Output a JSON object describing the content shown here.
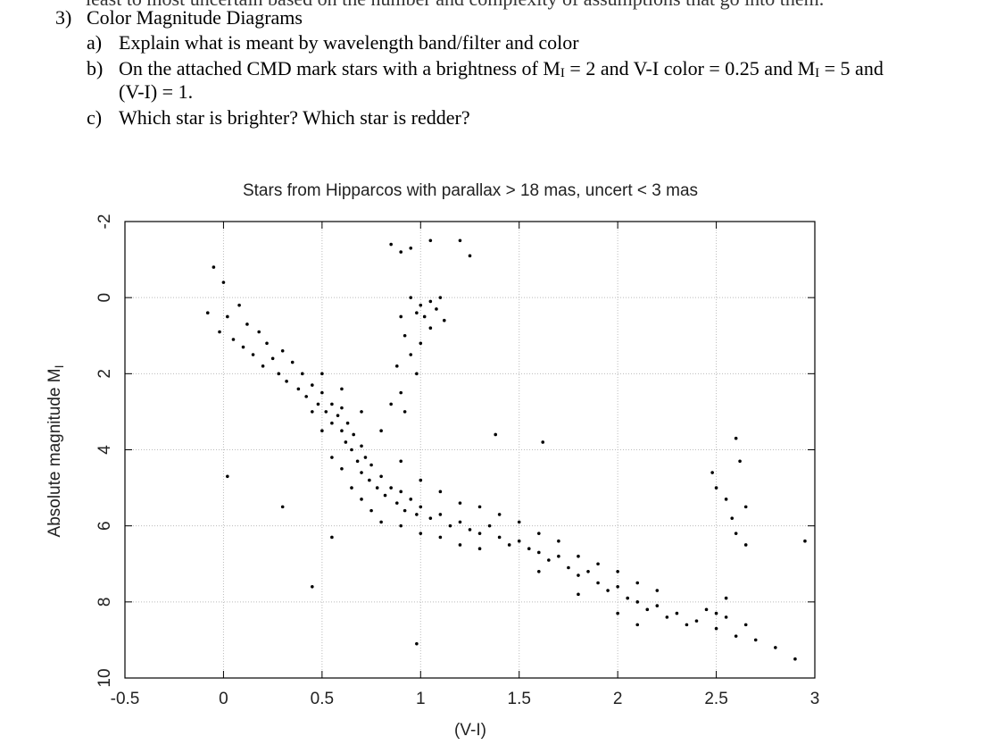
{
  "top_line": "least to most uncertain based on the number and complexity of assumptions that go into them.",
  "question": {
    "number": "3)",
    "title": "Color Magnitude Diagrams",
    "a": {
      "label": "a)",
      "text": "Explain what is meant by wavelength band/filter and color"
    },
    "b": {
      "label": "b)",
      "parts": [
        "On the attached CMD mark stars with a brightness of M",
        "I",
        " = 2 and V-I color = 0.25 and M",
        "I",
        " = 5 and",
        "(V-I) = 1."
      ]
    },
    "c": {
      "label": "c)",
      "text": "Which star is brighter? Which star is redder?"
    }
  },
  "chart_data": {
    "type": "scatter",
    "title": "Stars from Hipparcos with parallax > 18 mas, uncert < 3 mas",
    "x_label": "(V-I)",
    "y_label": [
      "Absolute magnitude M",
      "I"
    ],
    "xlim": [
      -0.5,
      3
    ],
    "xticks": [
      -0.5,
      0,
      0.5,
      1,
      1.5,
      2,
      2.5,
      3
    ],
    "ylim": [
      -2,
      10
    ],
    "yticks": [
      -2,
      0,
      2,
      4,
      6,
      8,
      10
    ],
    "y_inverted": true,
    "grid": true,
    "color": "#000000",
    "x": [
      -0.08,
      -0.05,
      -0.02,
      0,
      0.02,
      0.05,
      0.08,
      0.1,
      0.12,
      0.15,
      0.18,
      0.2,
      0.22,
      0.25,
      0.28,
      0.3,
      0.32,
      0.35,
      0.38,
      0.4,
      0.42,
      0.45,
      0.48,
      0.5,
      0.52,
      0.55,
      0.55,
      0.58,
      0.6,
      0.6,
      0.62,
      0.63,
      0.65,
      0.66,
      0.68,
      0.7,
      0.7,
      0.72,
      0.74,
      0.75,
      0.78,
      0.8,
      0.82,
      0.85,
      0.88,
      0.9,
      0.92,
      0.95,
      0.98,
      1.0,
      1.05,
      1.1,
      1.15,
      1.2,
      1.25,
      1.3,
      1.35,
      1.4,
      1.45,
      1.5,
      1.55,
      1.6,
      1.65,
      1.7,
      1.75,
      1.8,
      1.85,
      1.9,
      1.95,
      2.0,
      2.05,
      2.1,
      2.15,
      2.2,
      2.25,
      2.3,
      2.35,
      2.4,
      2.45,
      2.5,
      2.55,
      2.6,
      2.65,
      2.7,
      2.8,
      2.9,
      0.85,
      0.9,
      0.95,
      1.05,
      1.2,
      1.25,
      0.95,
      1.0,
      1.05,
      1.08,
      1.1,
      0.98,
      1.02,
      1.12,
      0.9,
      0.92,
      0.95,
      0.98,
      0.9,
      0.92,
      1.0,
      1.05,
      0.88,
      0.85,
      0.5,
      0.55,
      0.6,
      0.65,
      0.7,
      0.75,
      0.8,
      0.9,
      1.0,
      1.1,
      1.2,
      1.3,
      0.45,
      0.5,
      0.6,
      0.7,
      0.8,
      0.9,
      1.0,
      1.1,
      1.2,
      1.3,
      1.4,
      1.5,
      1.6,
      1.7,
      1.8,
      1.9,
      2.0,
      2.1,
      2.2,
      1.6,
      1.8,
      2.0,
      2.1,
      2.48,
      2.5,
      2.55,
      2.58,
      2.6,
      2.62,
      2.65,
      2.65,
      2.55,
      2.5,
      0.02,
      0.45,
      0.98,
      1.38,
      1.62,
      2.6,
      2.95,
      0.3,
      0.55
    ],
    "values": [
      0.4,
      -0.8,
      0.9,
      -0.4,
      0.5,
      1.1,
      0.2,
      1.3,
      0.7,
      1.5,
      0.9,
      1.8,
      1.2,
      1.6,
      2.0,
      1.4,
      2.2,
      1.7,
      2.4,
      2.0,
      2.6,
      2.3,
      2.8,
      2.5,
      3.0,
      2.8,
      3.3,
      3.1,
      3.5,
      2.9,
      3.8,
      3.3,
      4.0,
      3.6,
      4.3,
      3.9,
      4.6,
      4.2,
      4.8,
      4.4,
      5.0,
      4.7,
      5.2,
      5.0,
      5.4,
      5.1,
      5.6,
      5.3,
      5.7,
      5.5,
      5.8,
      5.7,
      6.0,
      5.9,
      6.1,
      6.2,
      6.0,
      6.3,
      6.5,
      6.4,
      6.6,
      6.7,
      6.9,
      6.8,
      7.1,
      7.3,
      7.2,
      7.5,
      7.7,
      7.6,
      7.9,
      8.0,
      8.2,
      8.1,
      8.4,
      8.3,
      8.6,
      8.5,
      8.2,
      8.7,
      8.4,
      8.9,
      8.6,
      9.0,
      9.2,
      9.5,
      -1.4,
      -1.2,
      -1.3,
      -1.5,
      -1.5,
      -1.1,
      0.0,
      0.2,
      0.1,
      0.3,
      0.0,
      0.4,
      0.5,
      0.6,
      0.5,
      1.0,
      1.5,
      2.0,
      2.5,
      3.0,
      1.2,
      0.8,
      1.8,
      2.8,
      3.5,
      4.2,
      4.5,
      5.0,
      5.3,
      5.6,
      5.9,
      6.0,
      6.2,
      6.3,
      6.5,
      6.6,
      3.0,
      2.0,
      2.4,
      3.0,
      3.5,
      4.3,
      4.8,
      5.1,
      5.4,
      5.5,
      5.7,
      5.9,
      6.2,
      6.4,
      6.8,
      7.0,
      7.2,
      7.5,
      7.7,
      7.2,
      7.8,
      8.3,
      8.6,
      4.6,
      5.0,
      5.3,
      5.8,
      6.2,
      4.3,
      5.5,
      6.5,
      7.9,
      8.3,
      4.7,
      7.6,
      9.1,
      3.6,
      3.8,
      3.7,
      6.4,
      5.5,
      6.3
    ]
  }
}
